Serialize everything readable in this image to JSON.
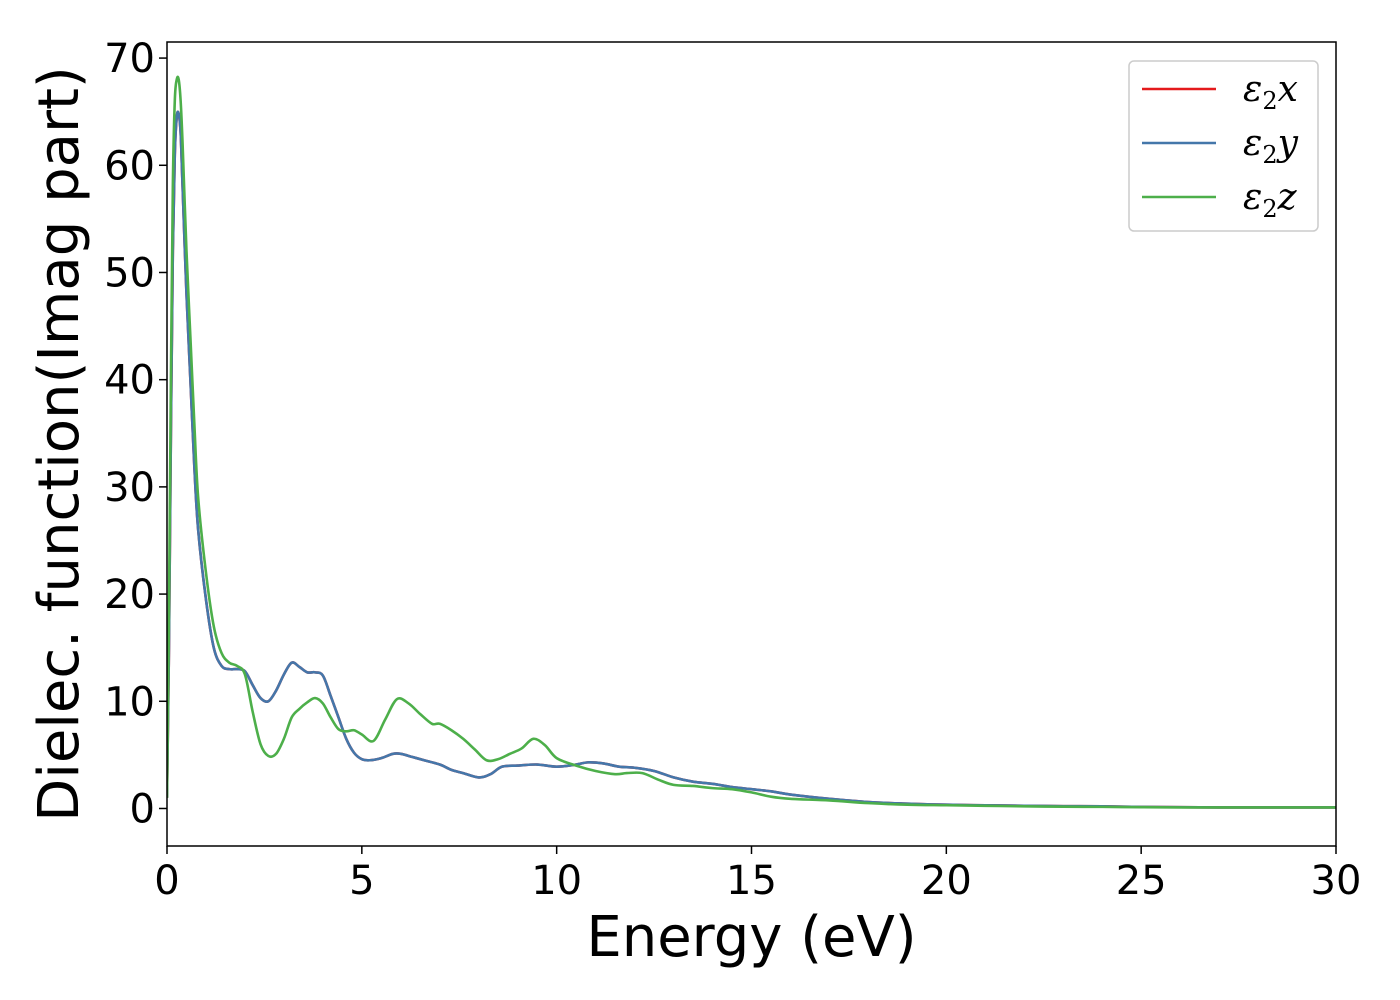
{
  "chart_data": {
    "type": "line",
    "title": "",
    "xlabel": "Energy (eV)",
    "ylabel": "Dielec. function(Imag part)",
    "xlim": [
      0,
      30
    ],
    "ylim": [
      -3.5,
      71.5
    ],
    "xticks": [
      0,
      5,
      10,
      15,
      20,
      25,
      30
    ],
    "yticks": [
      0,
      10,
      20,
      30,
      40,
      50,
      60,
      70
    ],
    "grid": false,
    "legend_position": "top-right",
    "series": [
      {
        "name": "ε₂x",
        "legend_base": "ε",
        "legend_sub": "2",
        "legend_var": "x",
        "color": "#e41a1c",
        "x": [
          0,
          0.05,
          0.1,
          0.15,
          0.2,
          0.25,
          0.3,
          0.35,
          0.4,
          0.5,
          0.6,
          0.7,
          0.8,
          1.0,
          1.2,
          1.4,
          1.6,
          1.8,
          2.0,
          2.2,
          2.4,
          2.6,
          2.8,
          3.0,
          3.2,
          3.4,
          3.6,
          3.8,
          4.0,
          4.2,
          4.4,
          4.6,
          4.8,
          5.0,
          5.2,
          5.5,
          5.8,
          6.0,
          6.3,
          6.6,
          7.0,
          7.3,
          7.6,
          8.0,
          8.3,
          8.6,
          9.0,
          9.5,
          10.0,
          10.5,
          10.8,
          11.2,
          11.6,
          12.0,
          12.5,
          13.0,
          13.5,
          14.0,
          14.5,
          15.0,
          15.5,
          16.0,
          17.0,
          18.0,
          19.0,
          20.0,
          21.0,
          22.0,
          23.0,
          24.0,
          25.0,
          26.0,
          27.0,
          28.0,
          29.0,
          30.0
        ],
        "y": [
          1,
          15,
          35,
          52,
          61,
          64.5,
          64.8,
          63,
          58,
          48,
          40,
          32,
          26,
          19.5,
          15,
          13.3,
          13,
          13,
          12.8,
          11.5,
          10.3,
          10,
          11,
          12.5,
          13.6,
          13.2,
          12.7,
          12.7,
          12.4,
          10.5,
          8.5,
          6.5,
          5.2,
          4.6,
          4.5,
          4.7,
          5.1,
          5.1,
          4.8,
          4.5,
          4.1,
          3.6,
          3.3,
          2.9,
          3.2,
          3.9,
          4.0,
          4.1,
          3.9,
          4.1,
          4.3,
          4.2,
          3.9,
          3.8,
          3.5,
          2.9,
          2.5,
          2.3,
          2.0,
          1.8,
          1.6,
          1.3,
          0.9,
          0.6,
          0.45,
          0.35,
          0.3,
          0.25,
          0.22,
          0.2,
          0.15,
          0.12,
          0.1,
          0.1,
          0.1,
          0.1
        ]
      },
      {
        "name": "ε₂y",
        "legend_base": "ε",
        "legend_sub": "2",
        "legend_var": "y",
        "color": "#4477aa",
        "x": [
          0,
          0.05,
          0.1,
          0.15,
          0.2,
          0.25,
          0.3,
          0.35,
          0.4,
          0.5,
          0.6,
          0.7,
          0.8,
          1.0,
          1.2,
          1.4,
          1.6,
          1.8,
          2.0,
          2.2,
          2.4,
          2.6,
          2.8,
          3.0,
          3.2,
          3.4,
          3.6,
          3.8,
          4.0,
          4.2,
          4.4,
          4.6,
          4.8,
          5.0,
          5.2,
          5.5,
          5.8,
          6.0,
          6.3,
          6.6,
          7.0,
          7.3,
          7.6,
          8.0,
          8.3,
          8.6,
          9.0,
          9.5,
          10.0,
          10.5,
          10.8,
          11.2,
          11.6,
          12.0,
          12.5,
          13.0,
          13.5,
          14.0,
          14.5,
          15.0,
          15.5,
          16.0,
          17.0,
          18.0,
          19.0,
          20.0,
          21.0,
          22.0,
          23.0,
          24.0,
          25.0,
          26.0,
          27.0,
          28.0,
          29.0,
          30.0
        ],
        "y": [
          1,
          15,
          35,
          52,
          61,
          64.5,
          64.8,
          63,
          58,
          48,
          40,
          32,
          26,
          19.5,
          15,
          13.3,
          13,
          13,
          12.8,
          11.5,
          10.3,
          10,
          11,
          12.5,
          13.6,
          13.2,
          12.7,
          12.7,
          12.4,
          10.5,
          8.5,
          6.5,
          5.2,
          4.6,
          4.5,
          4.7,
          5.1,
          5.1,
          4.8,
          4.5,
          4.1,
          3.6,
          3.3,
          2.9,
          3.2,
          3.9,
          4.0,
          4.1,
          3.9,
          4.1,
          4.3,
          4.2,
          3.9,
          3.8,
          3.5,
          2.9,
          2.5,
          2.3,
          2.0,
          1.8,
          1.6,
          1.3,
          0.9,
          0.6,
          0.45,
          0.35,
          0.3,
          0.25,
          0.22,
          0.2,
          0.15,
          0.12,
          0.1,
          0.1,
          0.1,
          0.1
        ]
      },
      {
        "name": "ε₂z",
        "legend_base": "ε",
        "legend_sub": "2",
        "legend_var": "z",
        "color": "#4daf4a",
        "x": [
          0,
          0.05,
          0.1,
          0.15,
          0.2,
          0.25,
          0.3,
          0.35,
          0.4,
          0.5,
          0.6,
          0.7,
          0.8,
          1.0,
          1.2,
          1.4,
          1.6,
          1.8,
          2.0,
          2.2,
          2.4,
          2.6,
          2.8,
          3.0,
          3.2,
          3.4,
          3.6,
          3.8,
          4.0,
          4.2,
          4.4,
          4.6,
          4.8,
          5.0,
          5.3,
          5.6,
          5.9,
          6.2,
          6.5,
          6.8,
          7.0,
          7.3,
          7.6,
          7.9,
          8.2,
          8.5,
          8.8,
          9.1,
          9.4,
          9.7,
          10.0,
          10.5,
          11.0,
          11.5,
          11.8,
          12.2,
          12.6,
          13.0,
          13.5,
          14.0,
          14.5,
          15.0,
          15.5,
          16.0,
          17.0,
          18.0,
          19.0,
          20.0,
          21.0,
          22.0,
          23.0,
          24.0,
          25.0,
          26.0,
          27.0,
          28.0,
          29.0,
          30.0
        ],
        "y": [
          1,
          18,
          40,
          58,
          66,
          68,
          68,
          66,
          62,
          52,
          44,
          36,
          29,
          22,
          17,
          14.5,
          13.6,
          13.3,
          12.5,
          9,
          6,
          4.9,
          5.1,
          6.5,
          8.5,
          9.3,
          9.9,
          10.3,
          9.8,
          8.5,
          7.4,
          7.2,
          7.3,
          6.9,
          6.3,
          8.3,
          10.2,
          9.8,
          8.8,
          7.9,
          7.9,
          7.3,
          6.5,
          5.5,
          4.5,
          4.6,
          5.1,
          5.6,
          6.5,
          5.9,
          4.7,
          4.0,
          3.5,
          3.2,
          3.3,
          3.3,
          2.7,
          2.2,
          2.1,
          1.9,
          1.8,
          1.5,
          1.1,
          0.9,
          0.75,
          0.5,
          0.35,
          0.3,
          0.25,
          0.2,
          0.17,
          0.15,
          0.12,
          0.1,
          0.1,
          0.1,
          0.1,
          0.1
        ]
      }
    ]
  }
}
